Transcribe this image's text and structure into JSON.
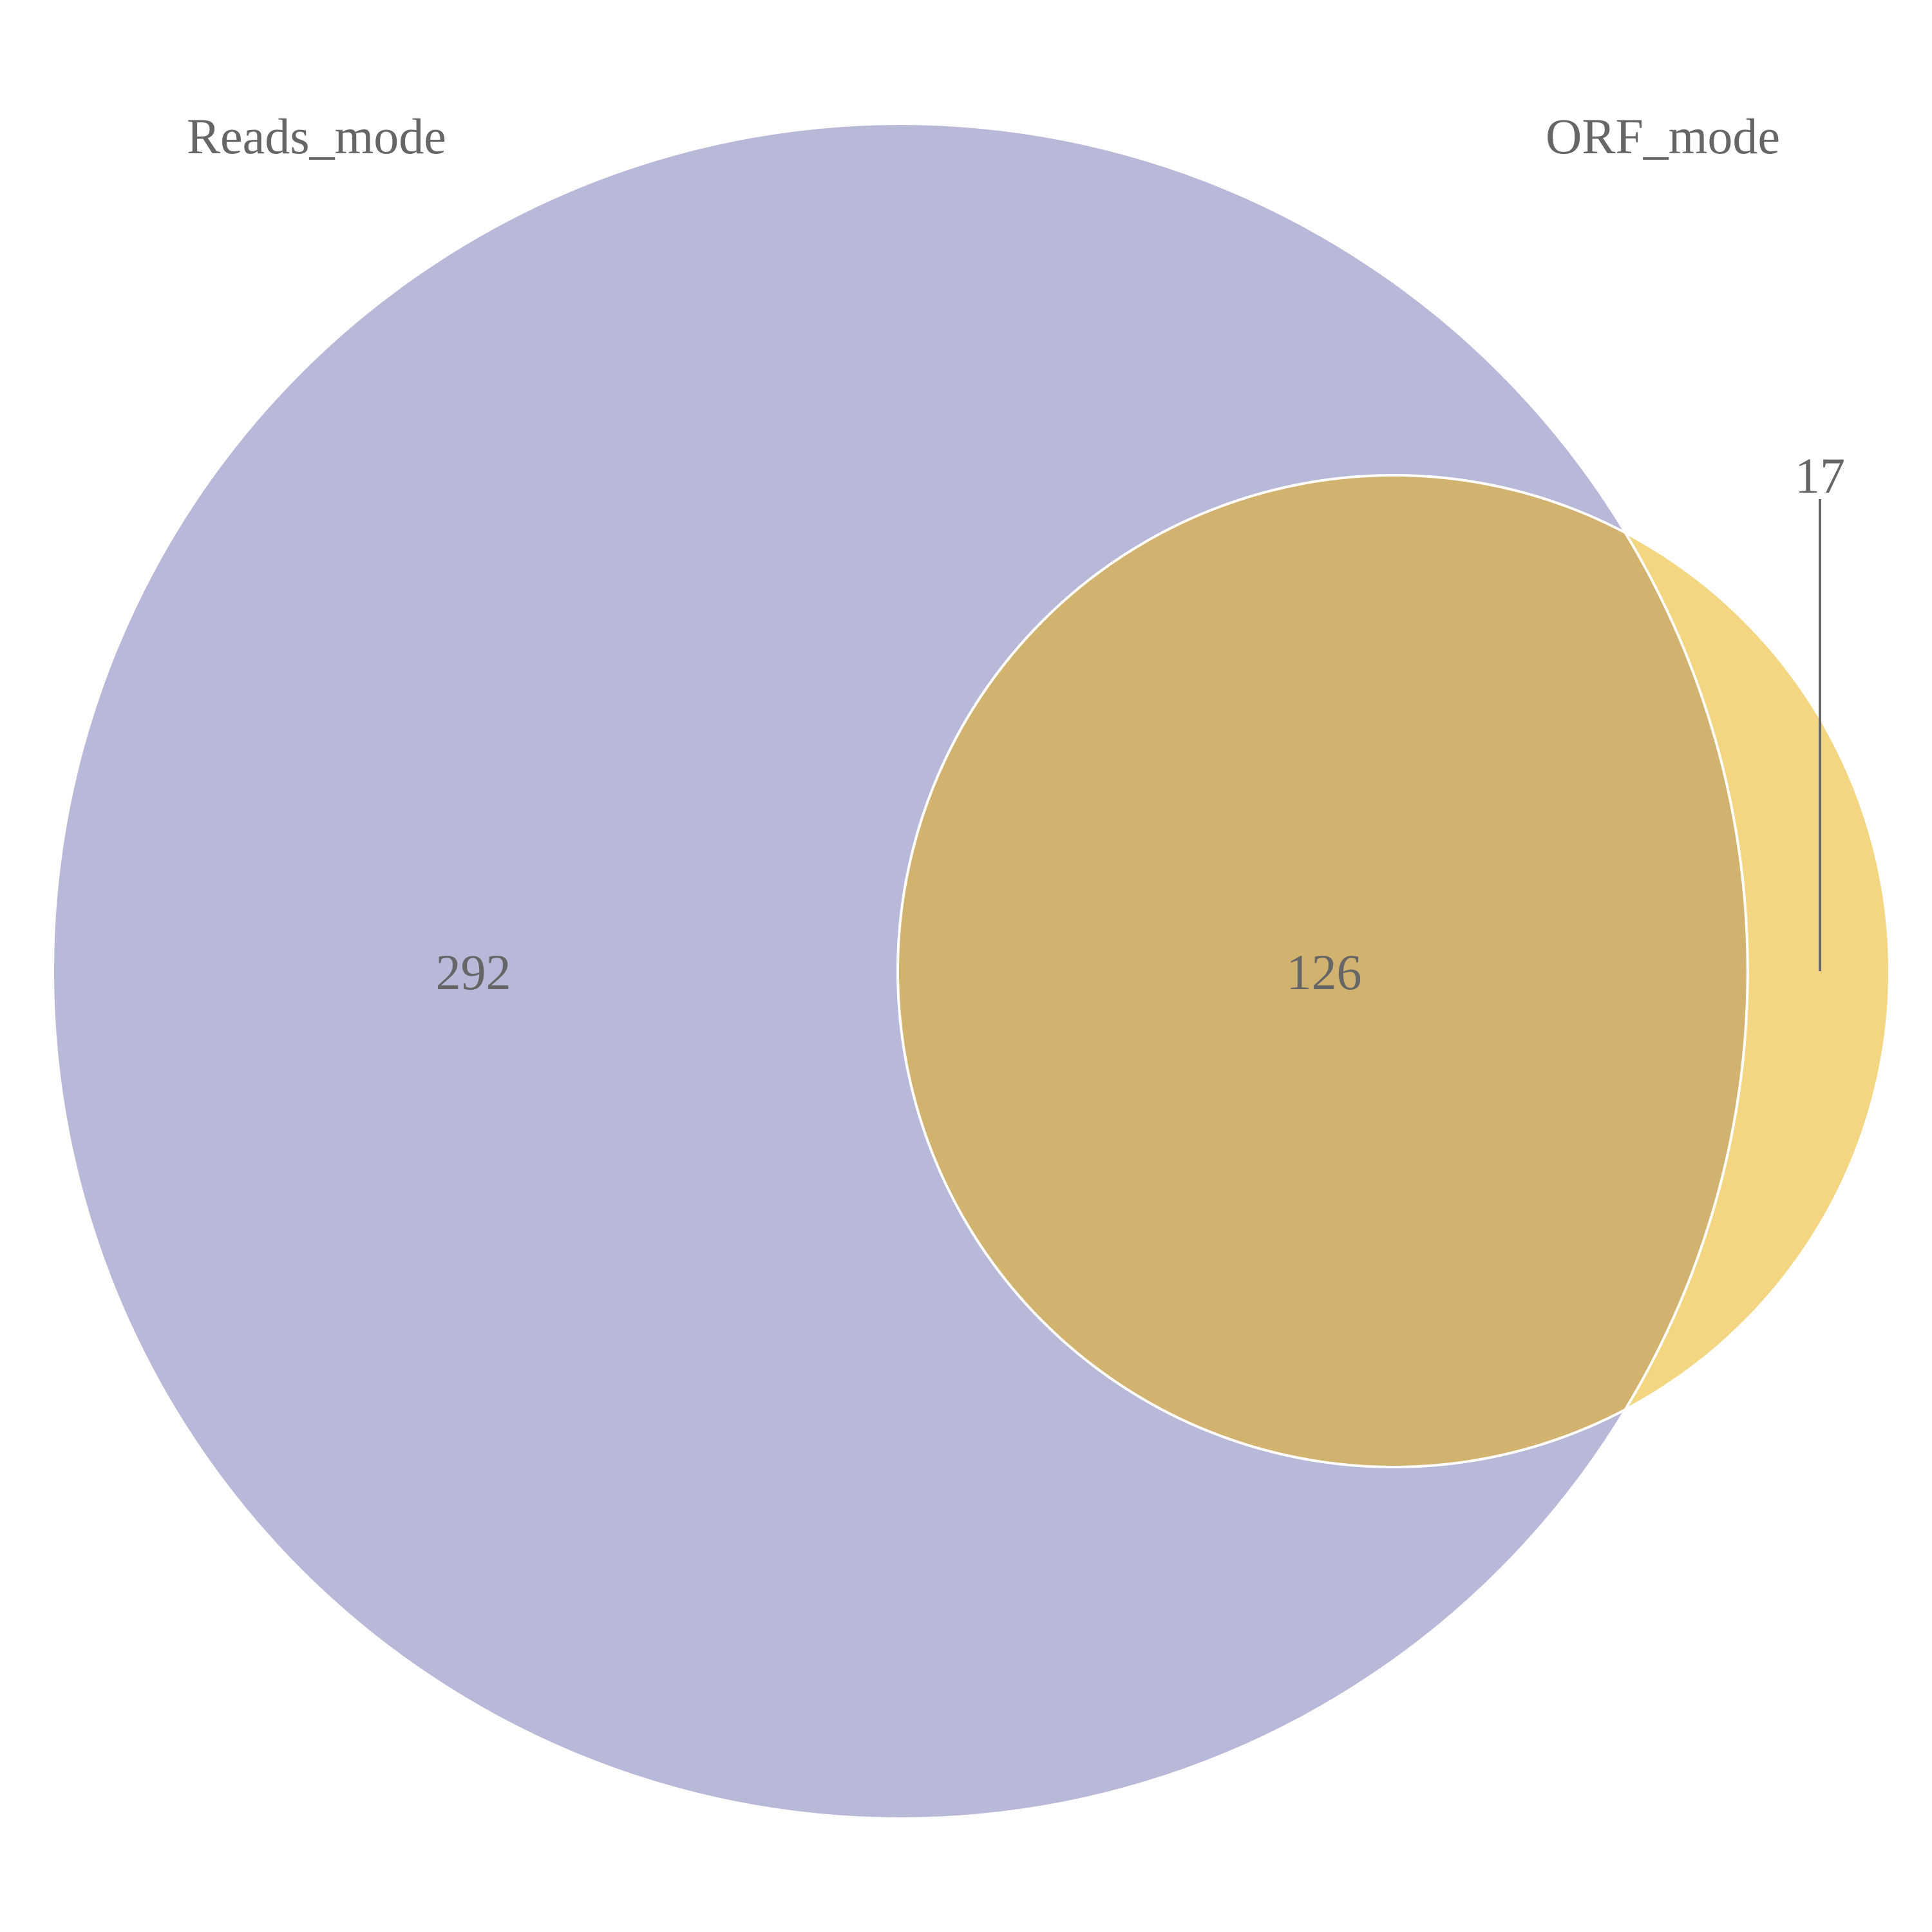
{
  "venn": {
    "colors": {
      "set_a": "#b8b8d8",
      "set_b": "#f3d582",
      "intersection": "#d1b26f",
      "outline": "#ffffff",
      "text": "#666666",
      "leader_line": "#666666"
    },
    "sets": [
      {
        "key": "a",
        "label": "Reads_mode"
      },
      {
        "key": "b",
        "label": "ORF_mode"
      }
    ],
    "regions": {
      "a_only": "292",
      "intersection": "126",
      "b_only": "17"
    }
  }
}
